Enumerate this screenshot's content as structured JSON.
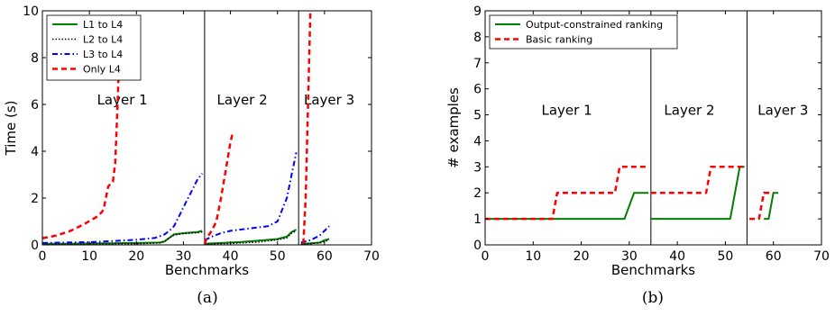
{
  "chart_data": [
    {
      "type": "line",
      "caption": "(a)",
      "xlabel": "Benchmarks",
      "ylabel": "Time (s)",
      "xlim": [
        0,
        70
      ],
      "ylim": [
        0,
        10
      ],
      "xticks": [
        0,
        10,
        20,
        30,
        40,
        50,
        60,
        70
      ],
      "yticks": [
        0,
        2,
        4,
        6,
        8,
        10
      ],
      "legend_position": "top-left",
      "dividers": [
        34.5,
        54.5
      ],
      "region_labels": [
        {
          "text": "Layer 1",
          "x": 17,
          "y": 6.0
        },
        {
          "text": "Layer 2",
          "x": 42.5,
          "y": 6.0
        },
        {
          "text": "Layer 3",
          "x": 61,
          "y": 6.0
        }
      ],
      "series": [
        {
          "name": "L1 to L4",
          "color": "#007f00",
          "dash": "solid",
          "width": 2,
          "segments": [
            [
              [
                0,
                0.05
              ],
              [
                5,
                0.05
              ],
              [
                10,
                0.06
              ],
              [
                15,
                0.07
              ],
              [
                20,
                0.08
              ],
              [
                25,
                0.1
              ],
              [
                26,
                0.15
              ],
              [
                27,
                0.3
              ],
              [
                28,
                0.45
              ],
              [
                30,
                0.5
              ],
              [
                33,
                0.55
              ],
              [
                34,
                0.6
              ]
            ],
            [
              [
                34.5,
                0.05
              ],
              [
                38,
                0.08
              ],
              [
                42,
                0.12
              ],
              [
                46,
                0.18
              ],
              [
                50,
                0.25
              ],
              [
                52,
                0.35
              ],
              [
                53,
                0.55
              ],
              [
                54,
                0.65
              ]
            ],
            [
              [
                55,
                0.05
              ],
              [
                57,
                0.07
              ],
              [
                59,
                0.1
              ],
              [
                60,
                0.2
              ],
              [
                61,
                0.25
              ]
            ]
          ]
        },
        {
          "name": "L2 to L4",
          "color": "#000000",
          "dash": "dotted",
          "width": 1.5,
          "segments": [
            [
              [
                0,
                0.02
              ],
              [
                10,
                0.03
              ],
              [
                20,
                0.05
              ],
              [
                25,
                0.08
              ],
              [
                26,
                0.15
              ],
              [
                27,
                0.3
              ],
              [
                28,
                0.42
              ],
              [
                30,
                0.48
              ],
              [
                33,
                0.52
              ],
              [
                34,
                0.55
              ]
            ],
            [
              [
                34.5,
                0.03
              ],
              [
                40,
                0.06
              ],
              [
                46,
                0.12
              ],
              [
                50,
                0.22
              ],
              [
                52,
                0.3
              ],
              [
                53,
                0.5
              ],
              [
                54,
                0.6
              ]
            ],
            [
              [
                55,
                0.02
              ],
              [
                57,
                0.05
              ],
              [
                59,
                0.08
              ],
              [
                60,
                0.15
              ],
              [
                61,
                0.2
              ]
            ]
          ]
        },
        {
          "name": "L3 to L4",
          "color": "#0000ff",
          "dash": "dashdot",
          "width": 2,
          "segments": [
            [
              [
                0,
                0.08
              ],
              [
                5,
                0.1
              ],
              [
                10,
                0.12
              ],
              [
                15,
                0.16
              ],
              [
                20,
                0.22
              ],
              [
                24,
                0.3
              ],
              [
                26,
                0.45
              ],
              [
                27,
                0.6
              ],
              [
                28,
                0.8
              ],
              [
                29,
                1.2
              ],
              [
                30,
                1.6
              ],
              [
                31,
                2.0
              ],
              [
                32,
                2.4
              ],
              [
                33,
                2.8
              ],
              [
                34,
                3.05
              ]
            ],
            [
              [
                34.5,
                0.2
              ],
              [
                36,
                0.35
              ],
              [
                38,
                0.5
              ],
              [
                40,
                0.6
              ],
              [
                44,
                0.7
              ],
              [
                48,
                0.8
              ],
              [
                50,
                1.0
              ],
              [
                51,
                1.5
              ],
              [
                52,
                2.0
              ],
              [
                53,
                3.0
              ],
              [
                54,
                3.95
              ]
            ],
            [
              [
                55,
                0.1
              ],
              [
                57,
                0.2
              ],
              [
                59,
                0.4
              ],
              [
                60,
                0.6
              ],
              [
                61,
                0.8
              ]
            ]
          ]
        },
        {
          "name": "Only L4",
          "color": "#ff0000",
          "dash": "dashed",
          "width": 2.5,
          "segments": [
            [
              [
                0,
                0.28
              ],
              [
                3,
                0.4
              ],
              [
                6,
                0.6
              ],
              [
                9,
                0.9
              ],
              [
                12,
                1.25
              ],
              [
                13,
                1.5
              ],
              [
                14,
                2.5
              ],
              [
                15,
                2.7
              ],
              [
                15.5,
                3.5
              ],
              [
                16,
                6.0
              ],
              [
                16.5,
                9.0
              ],
              [
                17,
                10
              ]
            ],
            [
              [
                34.5,
                0.05
              ],
              [
                35,
                0.3
              ],
              [
                36,
                0.6
              ],
              [
                37,
                1.0
              ],
              [
                38,
                2.0
              ],
              [
                39,
                3.2
              ],
              [
                40,
                4.4
              ],
              [
                40.5,
                4.8
              ]
            ],
            [
              [
                55.5,
                0.05
              ],
              [
                56,
                2.0
              ],
              [
                56.5,
                6.0
              ],
              [
                57,
                10
              ]
            ]
          ]
        }
      ]
    },
    {
      "type": "line",
      "caption": "(b)",
      "xlabel": "Benchmarks",
      "ylabel": "# examples",
      "xlim": [
        0,
        70
      ],
      "ylim": [
        0,
        9
      ],
      "xticks": [
        0,
        10,
        20,
        30,
        40,
        50,
        60,
        70
      ],
      "yticks": [
        0,
        1,
        2,
        3,
        4,
        5,
        6,
        7,
        8,
        9
      ],
      "legend_position": "top-left",
      "dividers": [
        34.5,
        54.5
      ],
      "region_labels": [
        {
          "text": "Layer 1",
          "x": 17,
          "y": 5.0
        },
        {
          "text": "Layer 2",
          "x": 42.5,
          "y": 5.0
        },
        {
          "text": "Layer 3",
          "x": 62,
          "y": 5.0
        }
      ],
      "series": [
        {
          "name": "Output-constrained ranking",
          "color": "#007f00",
          "dash": "solid",
          "width": 2,
          "segments": [
            [
              [
                0,
                1
              ],
              [
                29,
                1
              ],
              [
                31,
                2
              ],
              [
                34,
                2
              ]
            ],
            [
              [
                34.5,
                1
              ],
              [
                51,
                1
              ],
              [
                53,
                3
              ],
              [
                54,
                3
              ]
            ],
            [
              [
                58,
                1
              ],
              [
                59,
                1
              ],
              [
                60,
                2
              ],
              [
                61,
                2
              ]
            ]
          ]
        },
        {
          "name": "Basic ranking",
          "color": "#ff0000",
          "dash": "dashed",
          "width": 2.5,
          "segments": [
            [
              [
                0,
                1
              ],
              [
                14,
                1
              ],
              [
                15,
                2
              ],
              [
                27,
                2
              ],
              [
                28,
                3
              ],
              [
                34,
                3
              ]
            ],
            [
              [
                34.5,
                2
              ],
              [
                46,
                2
              ],
              [
                47,
                3
              ],
              [
                54,
                3
              ]
            ],
            [
              [
                55,
                1
              ],
              [
                57,
                1
              ],
              [
                58,
                2
              ],
              [
                60,
                2
              ]
            ]
          ]
        }
      ]
    }
  ]
}
